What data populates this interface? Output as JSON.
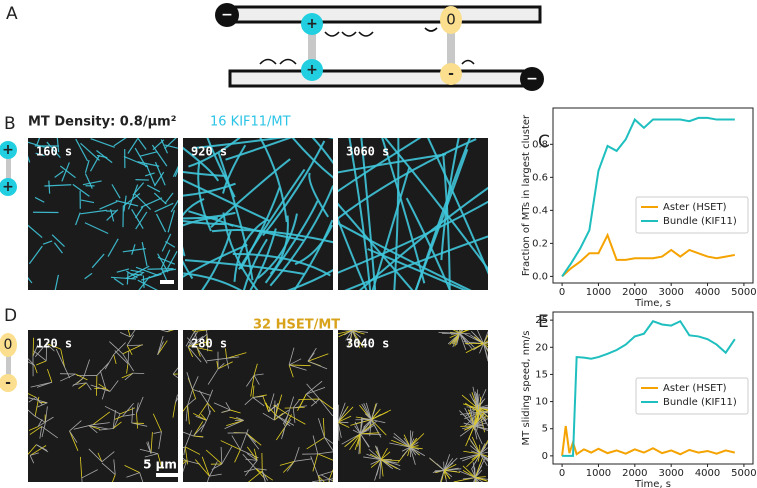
{
  "panel_labels": [
    "A",
    "B",
    "C",
    "D",
    "E"
  ],
  "diagram": {
    "top_end": "−",
    "bottom_end": "−",
    "kif11_heads": [
      "+",
      "+"
    ],
    "hset_heads": [
      "0",
      "-"
    ]
  },
  "panel_b": {
    "density": "MT Density: 0.8/µm²",
    "motor": "16 KIF11/MT",
    "times": [
      "160 s",
      "920 s",
      "3060 s"
    ],
    "icon": [
      "+",
      "+"
    ]
  },
  "panel_d": {
    "motor": "32 HSET/MT",
    "times": [
      "120 s",
      "280 s",
      "3040 s"
    ],
    "scale_bar": "5 µm",
    "icon": [
      "0",
      "-"
    ]
  },
  "chart_data": [
    {
      "type": "line",
      "xlabel": "Time, s",
      "ylabel": "Fraction of MTs in largest cluster",
      "x": [
        0,
        250,
        500,
        750,
        1000,
        1250,
        1500,
        1750,
        2000,
        2250,
        2500,
        2750,
        3000,
        3250,
        3500,
        3750,
        4000,
        4250,
        4500,
        4750
      ],
      "series": [
        {
          "name": "Aster (HSET)",
          "color": "#f5a300",
          "values": [
            0,
            0.05,
            0.09,
            0.14,
            0.14,
            0.25,
            0.1,
            0.1,
            0.11,
            0.11,
            0.11,
            0.12,
            0.16,
            0.12,
            0.16,
            0.14,
            0.12,
            0.11,
            0.12,
            0.13
          ]
        },
        {
          "name": "Bundle (KIF11)",
          "color": "#1fbfbf",
          "values": [
            0,
            0.08,
            0.17,
            0.28,
            0.64,
            0.79,
            0.76,
            0.83,
            0.95,
            0.9,
            0.95,
            0.95,
            0.95,
            0.95,
            0.94,
            0.96,
            0.96,
            0.95,
            0.95,
            0.95
          ]
        }
      ],
      "xlim": [
        -250,
        5250
      ],
      "ylim": [
        -0.04,
        1.02
      ],
      "xticks": [
        0,
        1000,
        2000,
        3000,
        4000,
        5000
      ],
      "yticks": [
        {
          "value": 0,
          "label": "0.0"
        },
        {
          "value": 0.2,
          "label": "0.2"
        },
        {
          "value": 0.4,
          "label": "0.4"
        },
        {
          "value": 0.6,
          "label": "0.6"
        },
        {
          "value": 0.8,
          "label": "0.8"
        }
      ],
      "legend": "lower right"
    },
    {
      "type": "line",
      "xlabel": "Time, s",
      "ylabel": "MT sliding speed, nm/s",
      "x": [
        0,
        100,
        200,
        300,
        400,
        600,
        800,
        1000,
        1250,
        1500,
        1750,
        2000,
        2250,
        2500,
        2750,
        3000,
        3250,
        3500,
        3750,
        4000,
        4250,
        4500,
        4750
      ],
      "series": [
        {
          "name": "Aster (HSET)",
          "color": "#f5a300",
          "values": [
            0,
            5.5,
            0.5,
            2.5,
            0.3,
            1.2,
            0.6,
            1.3,
            0.5,
            1.0,
            0.4,
            1.2,
            0.6,
            1.4,
            0.5,
            1.0,
            0.3,
            1.1,
            0.6,
            0.9,
            0.4,
            1.0,
            0.6
          ]
        },
        {
          "name": "Bundle (KIF11)",
          "color": "#1fbfbf",
          "values": [
            0,
            0,
            0,
            0,
            18.2,
            18.1,
            17.9,
            18.2,
            18.8,
            19.5,
            20.5,
            22,
            22.5,
            24.8,
            24.2,
            24.0,
            24.8,
            22.2,
            22.0,
            21.5,
            20.5,
            19,
            21.5
          ]
        }
      ],
      "xlim": [
        -250,
        5250
      ],
      "ylim": [
        -1.5,
        26.5
      ],
      "xticks": [
        0,
        1000,
        2000,
        3000,
        4000,
        5000
      ],
      "yticks": [
        0,
        5,
        10,
        15,
        20,
        25
      ],
      "legend": "lower right"
    }
  ]
}
